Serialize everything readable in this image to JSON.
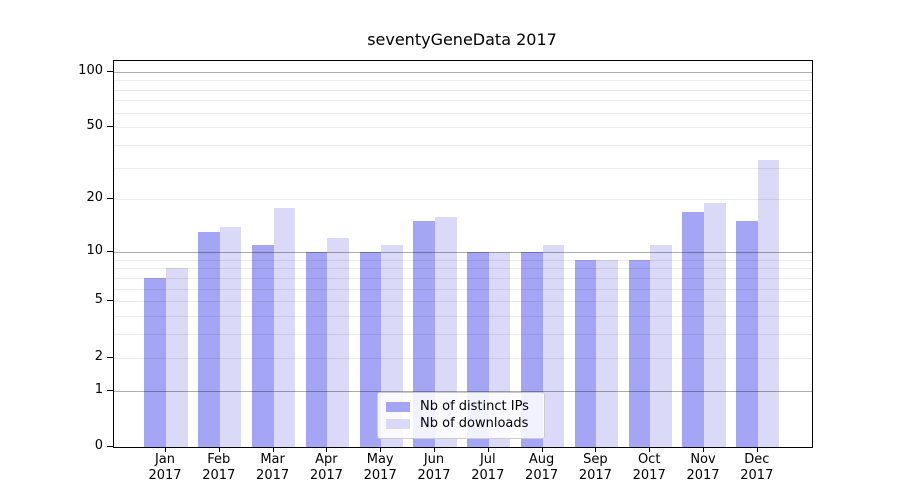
{
  "title": "seventyGeneData 2017",
  "chart_data": {
    "type": "bar",
    "title": "seventyGeneData 2017",
    "categories": [
      "Jan",
      "Feb",
      "Mar",
      "Apr",
      "May",
      "Jun",
      "Jul",
      "Aug",
      "Sep",
      "Oct",
      "Nov",
      "Dec"
    ],
    "x_year": "2017",
    "series": [
      {
        "name": "Nb of distinct IPs",
        "color": "#a5a5f5",
        "values": [
          7,
          13,
          11,
          10,
          10,
          15,
          10,
          10,
          9,
          9,
          17,
          15
        ]
      },
      {
        "name": "Nb of downloads",
        "color": "#dadaf8",
        "values": [
          8,
          14,
          18,
          12,
          11,
          16,
          10,
          11,
          9,
          11,
          19,
          33
        ]
      }
    ],
    "y_scale": "log1p",
    "y_ticks": [
      0,
      1,
      2,
      5,
      10,
      20,
      50,
      100
    ],
    "y_major_gridlines": [
      1,
      10,
      100
    ],
    "y_minor_gridlines": [
      2,
      3,
      4,
      5,
      6,
      7,
      8,
      9,
      20,
      30,
      40,
      50,
      60,
      70,
      80,
      90
    ],
    "ylim": [
      0,
      114
    ],
    "grid": "on",
    "legend_position": "lower center",
    "background": "#ffffff"
  }
}
